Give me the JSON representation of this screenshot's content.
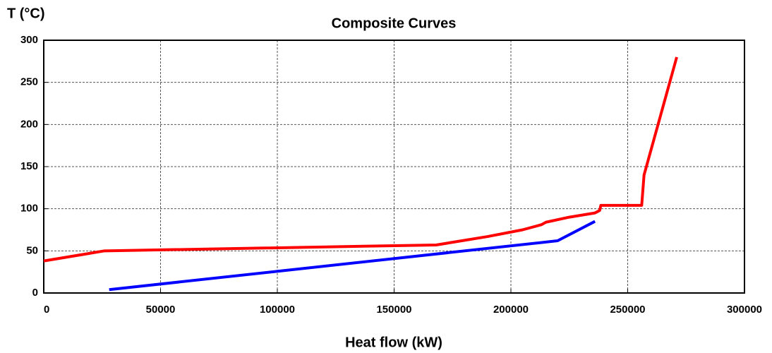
{
  "chart_data": {
    "type": "line",
    "title": "Composite Curves",
    "y_label": "T (°C)",
    "x_label": "Heat flow (kW)",
    "xlim": [
      0,
      300000
    ],
    "xticks": [
      0,
      50000,
      100000,
      150000,
      200000,
      250000,
      300000
    ],
    "ylim": [
      0,
      300
    ],
    "yticks": [
      0,
      50,
      100,
      150,
      200,
      250,
      300
    ],
    "grid": true,
    "series": [
      {
        "color": "#ff0000",
        "x": [
          0,
          26000,
          168000,
          190000,
          205000,
          213000,
          215000,
          225000,
          236000,
          238000,
          238500,
          256000,
          257000,
          271000
        ],
        "values": [
          38,
          50,
          57,
          67,
          75,
          81,
          84,
          90,
          95,
          98,
          104,
          104,
          140,
          280
        ]
      },
      {
        "color": "#0000ff",
        "x": [
          28000,
          220000,
          236000
        ],
        "values": [
          4,
          62,
          85
        ]
      }
    ]
  }
}
